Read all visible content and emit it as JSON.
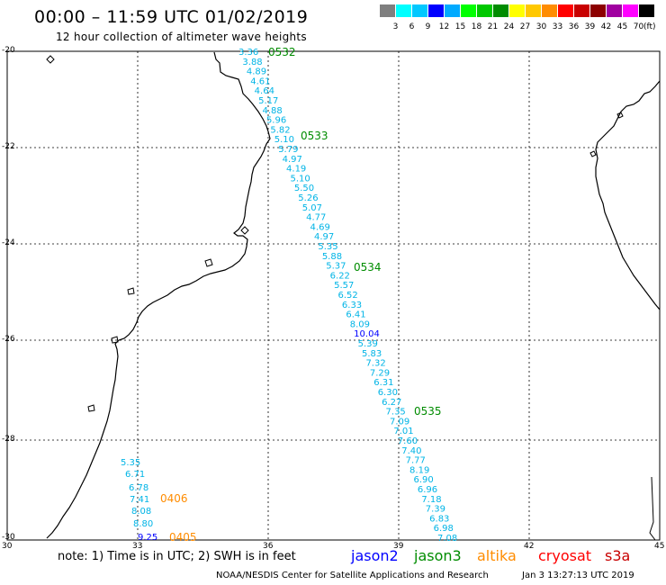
{
  "header": {
    "title": "00:00 – 11:59 UTC 01/02/2019",
    "subtitle": "12 hour collection of altimeter wave heights"
  },
  "legend": {
    "colors": [
      "#7f7f7f",
      "#00ffff",
      "#00c8ff",
      "#0000ff",
      "#00aaff",
      "#00ff00",
      "#00c800",
      "#008c00",
      "#ffff00",
      "#ffc800",
      "#ff8c00",
      "#ff0000",
      "#c80000",
      "#8c0000",
      "#a000a0",
      "#ff00ff",
      "#000000"
    ],
    "labels": [
      "3",
      "6",
      "9",
      "12",
      "15",
      "18",
      "21",
      "24",
      "27",
      "30",
      "33",
      "36",
      "39",
      "42",
      "45",
      "70"
    ],
    "unit": "(ft)"
  },
  "axes": {
    "lat_labels": [
      "-20",
      "-22",
      "-24",
      "-26",
      "-28",
      "-30"
    ],
    "lon_labels": [
      "30",
      "33",
      "36",
      "39",
      "42",
      "45"
    ]
  },
  "tracks": {
    "main": {
      "values": [
        "3.36",
        "3.88",
        "4.89",
        "4.61",
        "4.64",
        "5.17",
        "4.88",
        "5.96",
        "5.82",
        "5.10",
        "5.79",
        "4.97",
        "4.19",
        "5.10",
        "5.50",
        "5.26",
        "5.07",
        "4.77",
        "4.69",
        "4.97",
        "5.35",
        "5.88",
        "5.37",
        "6.22",
        "5.57",
        "6.52",
        "6.33",
        "6.41",
        "8.09",
        "10.04",
        "5.39",
        "5.83",
        "7.32",
        "7.29",
        "6.31",
        "6.30",
        "6.27",
        "7.35",
        "7.09",
        "7.01",
        "7.60",
        "7.40",
        "7.77",
        "8.19",
        "6.90",
        "6.96",
        "7.18",
        "7.39",
        "6.83",
        "6.98",
        "7.08"
      ],
      "highlight_index": 29
    },
    "coastal": {
      "values": [
        "5.35",
        "6.71",
        "6.78",
        "7.41",
        "8.08",
        "8.80",
        "9.25"
      ],
      "highlight_index": 6
    },
    "time_labels": [
      {
        "text": "0532",
        "color": "#008c00"
      },
      {
        "text": "0533",
        "color": "#008c00"
      },
      {
        "text": "0534",
        "color": "#008c00"
      },
      {
        "text": "0535",
        "color": "#008c00"
      },
      {
        "text": "0406",
        "color": "#ff8c00"
      },
      {
        "text": "0405",
        "color": "#ff8c00"
      }
    ],
    "value_color": "#00b4e6",
    "highlight_color": "#0000ff"
  },
  "footer": {
    "note": "note: 1) Time is in UTC; 2) SWH is in feet",
    "satellites": [
      {
        "name": "jason2",
        "color": "#0000ff"
      },
      {
        "name": "jason3",
        "color": "#008c00"
      },
      {
        "name": "altika",
        "color": "#ff8c00"
      },
      {
        "name": "cryosat",
        "color": "#ff0000"
      },
      {
        "name": "s3a",
        "color": "#c80000"
      }
    ],
    "credit": "NOAA/NESDIS Center for Satellite Applications and Research",
    "timestamp": "Jan  3 13:27:13 UTC 2019"
  }
}
